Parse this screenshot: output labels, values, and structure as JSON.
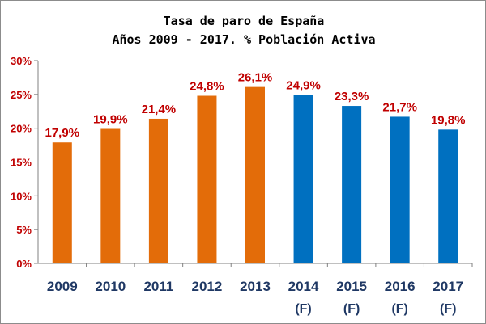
{
  "chart_data": {
    "type": "bar",
    "title": "Tasa de paro de España",
    "subtitle": "Años 2009 - 2017. % Población Activa",
    "categories": [
      "2009",
      "2010",
      "2011",
      "2012",
      "2013",
      "2014",
      "2015",
      "2016",
      "2017"
    ],
    "category_sublabels": [
      "",
      "",
      "",
      "",
      "",
      "(F)",
      "(F)",
      "(F)",
      "(F)"
    ],
    "values": [
      17.9,
      19.9,
      21.4,
      24.8,
      26.1,
      24.9,
      23.3,
      21.7,
      19.8
    ],
    "data_labels": [
      "17,9%",
      "19,9%",
      "21,4%",
      "24,8%",
      "26,1%",
      "24,9%",
      "23,3%",
      "21,7%",
      "19,8%"
    ],
    "bar_colors": [
      "#e36c09",
      "#e36c09",
      "#e36c09",
      "#e36c09",
      "#e36c09",
      "#0070c0",
      "#0070c0",
      "#0070c0",
      "#0070c0"
    ],
    "yticks": [
      0,
      5,
      10,
      15,
      20,
      25,
      30
    ],
    "ytick_labels": [
      "0%",
      "5%",
      "10%",
      "15%",
      "20%",
      "25%",
      "30%"
    ],
    "ylim": [
      0,
      30
    ],
    "grid": false,
    "xlabel": "",
    "ylabel": "",
    "colors": {
      "actual": "#e36c09",
      "forecast": "#0070c0",
      "label": "#c00000",
      "category": "#1f3864",
      "axis": "#808080"
    }
  }
}
